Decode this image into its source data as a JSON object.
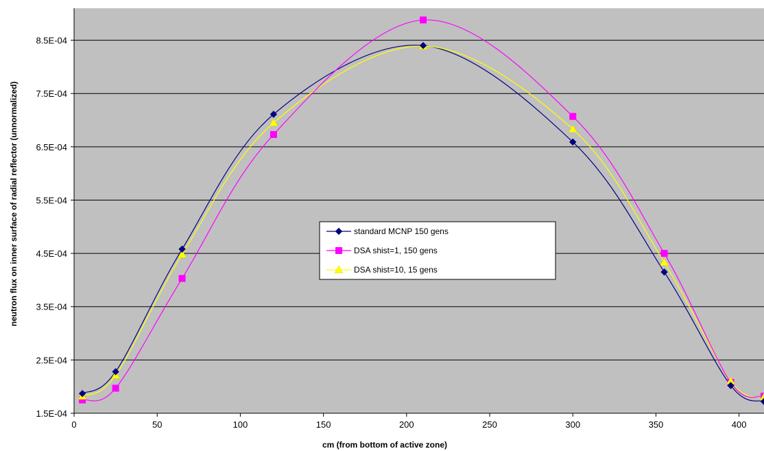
{
  "chart_data": {
    "type": "line",
    "title": "",
    "xlabel": "cm (from bottom of active zone)",
    "ylabel": "neutron flux on inner surface of radial reflector (unnormalized)",
    "xlim": [
      0,
      415
    ],
    "ylim": [
      0.00015,
      0.00091
    ],
    "x_ticks": [
      0,
      50,
      100,
      150,
      200,
      250,
      300,
      350,
      400
    ],
    "y_ticks": [
      0.00015,
      0.00025,
      0.00035,
      0.00045,
      0.00055,
      0.00065,
      0.00075,
      0.00085
    ],
    "y_tick_labels": [
      "1.5E-04",
      "2.5E-04",
      "3.5E-04",
      "4.5E-04",
      "5.5E-04",
      "6.5E-04",
      "7.5E-04",
      "8.5E-04"
    ],
    "grid": "horizontal",
    "plot_background": "#c0c0c0",
    "legend_position": "center",
    "series": [
      {
        "name": "standard MCNP 150 gens",
        "color": "#000080",
        "marker": "diamond",
        "x": [
          5,
          25,
          65,
          120,
          210,
          300,
          355,
          395,
          415
        ],
        "y": [
          0.000187,
          0.000228,
          0.000458,
          0.000711,
          0.00084,
          0.000659,
          0.000415,
          0.000202,
          0.000172
        ]
      },
      {
        "name": "DSA shist=1, 150 gens",
        "color": "#ff00ff",
        "marker": "square",
        "x": [
          5,
          25,
          65,
          120,
          210,
          300,
          355,
          395,
          415
        ],
        "y": [
          0.000175,
          0.000197,
          0.000403,
          0.000673,
          0.000888,
          0.000707,
          0.00045,
          0.000208,
          0.000182
        ]
      },
      {
        "name": "DSA shist=10, 15 gens",
        "color": "#ffff00",
        "marker": "triangle",
        "x": [
          5,
          25,
          65,
          120,
          210,
          300,
          355,
          395,
          415
        ],
        "y": [
          0.000182,
          0.000221,
          0.000448,
          0.000695,
          0.000839,
          0.000683,
          0.000433,
          0.00021,
          0.00018
        ]
      }
    ]
  }
}
